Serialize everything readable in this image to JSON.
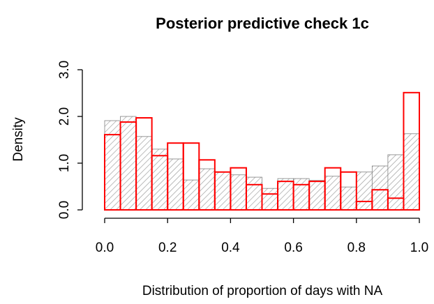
{
  "chart_data": {
    "type": "histogram",
    "title": "Posterior predictive check 1c",
    "xlabel": "Distribution of proportion of days with NA",
    "ylabel": "Density",
    "bins": [
      0,
      0.05,
      0.1,
      0.15,
      0.2,
      0.25,
      0.3,
      0.35,
      0.4,
      0.45,
      0.5,
      0.55,
      0.6,
      0.65,
      0.7,
      0.75,
      0.8,
      0.85,
      0.9,
      0.95,
      1
    ],
    "series": [
      {
        "color": "#a0a0a0",
        "style": "hatch",
        "values": [
          1.91,
          2.0,
          1.57,
          1.3,
          1.09,
          0.64,
          0.88,
          0.81,
          0.75,
          0.7,
          0.46,
          0.67,
          0.67,
          0.63,
          0.72,
          0.49,
          0.81,
          0.94,
          1.18,
          1.63
        ]
      },
      {
        "color": "#ff0000",
        "style": "outline",
        "values": [
          1.61,
          1.88,
          1.97,
          1.16,
          1.43,
          1.43,
          1.07,
          0.81,
          0.9,
          0.54,
          0.34,
          0.61,
          0.54,
          0.61,
          0.9,
          0.81,
          0.18,
          0.43,
          0.25,
          2.51
        ]
      }
    ],
    "xlim": [
      0,
      1
    ],
    "xticks": [
      {
        "value": 0,
        "label": "0.0"
      },
      0.2,
      0.4,
      0.6,
      0.8,
      {
        "value": 1,
        "label": "1.0"
      }
    ],
    "ylim": [
      0,
      3
    ],
    "yticks": [
      {
        "value": 0,
        "label": "0.0"
      },
      {
        "value": 1,
        "label": "1.0"
      },
      {
        "value": 2,
        "label": "2.0"
      },
      {
        "value": 3,
        "label": "3.0"
      }
    ]
  }
}
